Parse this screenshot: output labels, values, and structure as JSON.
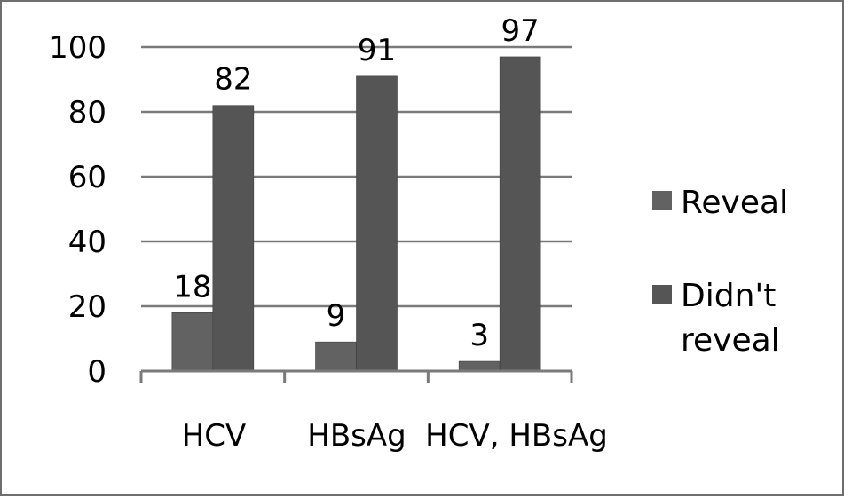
{
  "chart_data": {
    "type": "bar",
    "title": "",
    "xlabel": "",
    "ylabel": "",
    "categories": [
      "HCV",
      "HBsAg",
      "HCV, HBsAg"
    ],
    "series": [
      {
        "name": "Reveal",
        "values": [
          18,
          9,
          3
        ],
        "color": "#626262"
      },
      {
        "name": "Didn't reveal",
        "values": [
          82,
          91,
          97
        ],
        "color": "#555555"
      }
    ],
    "ylim": [
      0,
      100
    ],
    "yticks": [
      0,
      20,
      40,
      60,
      80,
      100
    ],
    "grid": true,
    "legend_position": "right"
  }
}
